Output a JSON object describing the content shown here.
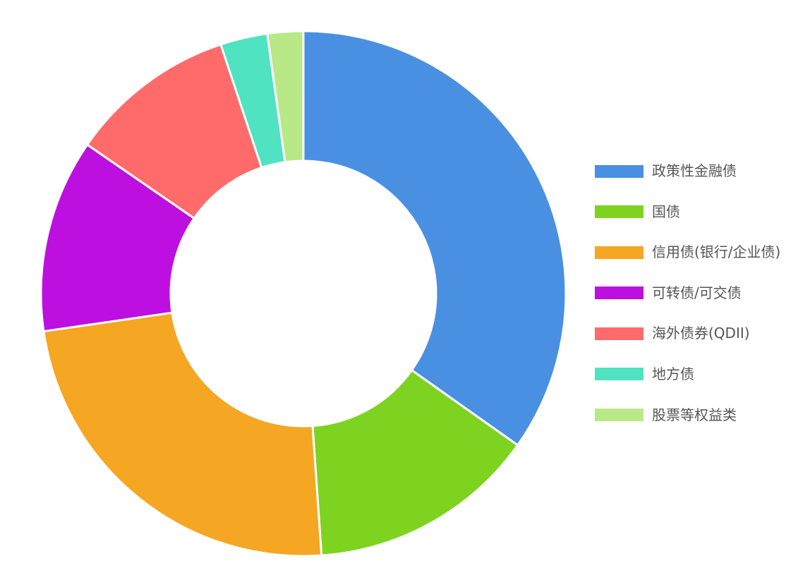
{
  "chart_data": {
    "type": "pie",
    "variant": "donut",
    "legend_position": "right",
    "categories": [
      "政策性金融债",
      "国债",
      "信用债(银行/企业债)",
      "可转债/可交债",
      "海外债券(QDII)",
      "地方债",
      "股票等权益类"
    ],
    "values": [
      34.8,
      14.1,
      23.8,
      11.9,
      10.3,
      2.9,
      2.2
    ],
    "colors": [
      "#4A90E2",
      "#7ED321",
      "#F5A623",
      "#BD10E0",
      "#FF6B6B",
      "#50E3C2",
      "#B8E986"
    ]
  }
}
